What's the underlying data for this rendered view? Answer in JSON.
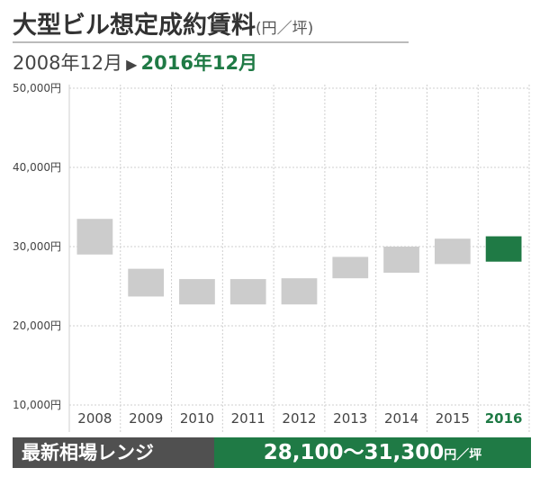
{
  "header": {
    "title": "大型ビル想定成約賃料",
    "unit": "(円／坪)",
    "period_from": "2008年12月",
    "period_to": "2016年12月"
  },
  "footer": {
    "label": "最新相場レンジ",
    "range": "28,100〜31,300",
    "unit": "円／坪"
  },
  "colors": {
    "range_bar": "#cccccc",
    "highlight": "#1f7a45",
    "text": "#333333",
    "footer_label_bg": "#505050"
  },
  "chart_data": {
    "type": "bar",
    "subtype": "floating-range",
    "categories": [
      "2008",
      "2009",
      "2010",
      "2011",
      "2012",
      "2013",
      "2014",
      "2015",
      "2016"
    ],
    "highlight_category": "2016",
    "ranges": [
      [
        29000,
        33500
      ],
      [
        23700,
        27200
      ],
      [
        22700,
        25900
      ],
      [
        22700,
        25900
      ],
      [
        22700,
        26000
      ],
      [
        26000,
        28700
      ],
      [
        26700,
        30000
      ],
      [
        27800,
        31000
      ],
      [
        28100,
        31300
      ]
    ],
    "y_ticks": [
      "50,000円",
      "40,000円",
      "30,000円",
      "20,000円",
      "10,000円"
    ],
    "y_tick_values": [
      50000,
      40000,
      30000,
      20000,
      10000
    ],
    "ylim": [
      10000,
      50000
    ],
    "grid": true
  }
}
